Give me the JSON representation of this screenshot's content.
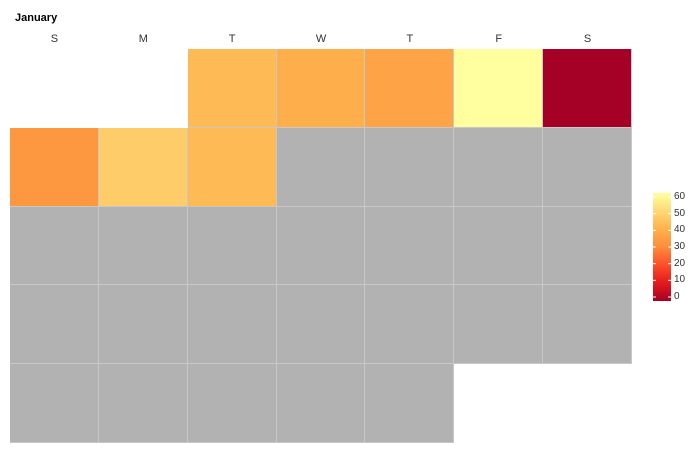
{
  "chart_data": {
    "type": "heatmap",
    "title": "January",
    "day_labels": [
      "S",
      "M",
      "T",
      "W",
      "T",
      "F",
      "S"
    ],
    "weeks": 5,
    "first_day_column": 2,
    "days_in_month": 31,
    "values": [
      {
        "day": 1,
        "value": 42
      },
      {
        "day": 2,
        "value": 39
      },
      {
        "day": 3,
        "value": 36
      },
      {
        "day": 4,
        "value": 60
      },
      {
        "day": 5,
        "value": 0
      },
      {
        "day": 6,
        "value": 33
      },
      {
        "day": 7,
        "value": 47
      },
      {
        "day": 8,
        "value": 42
      }
    ],
    "missing_color": "#b2b2b2",
    "colorscale": {
      "min": 0,
      "max": 60,
      "ticks": [
        0,
        10,
        20,
        30,
        40,
        50,
        60
      ],
      "stops": [
        "#a50026",
        "#e31a1c",
        "#fc4e2a",
        "#fd8d3c",
        "#feb24c",
        "#fed976",
        "#ffffa0"
      ]
    }
  }
}
